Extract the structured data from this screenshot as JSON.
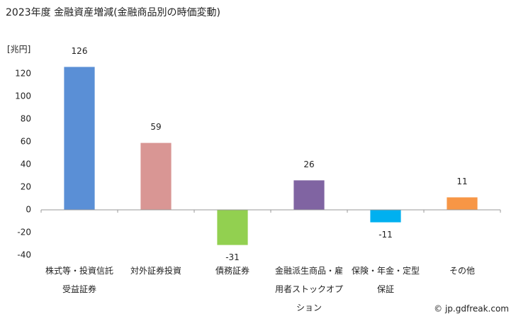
{
  "chart_data": {
    "type": "bar",
    "title": "2023年度 金融資産増減(金融商品別の時価変動)",
    "y_label": "[兆円]",
    "categories": [
      "株式等・投資信託受益証券",
      "対外証券投資",
      "債務証券",
      "金融派生商品・雇用者ストックオプション",
      "保険・年金・定型保証",
      "その他"
    ],
    "values": [
      126,
      59,
      -31,
      26,
      -11,
      11
    ],
    "colors": [
      "#5a8fd6",
      "#d99694",
      "#92d050",
      "#8064a2",
      "#00b0f0",
      "#f79646"
    ],
    "ylim": [
      -40,
      140
    ],
    "yticks": [
      -40,
      -20,
      0,
      20,
      40,
      60,
      80,
      100,
      120
    ],
    "grid": false,
    "credit": "© jp.gdfreak.com"
  }
}
